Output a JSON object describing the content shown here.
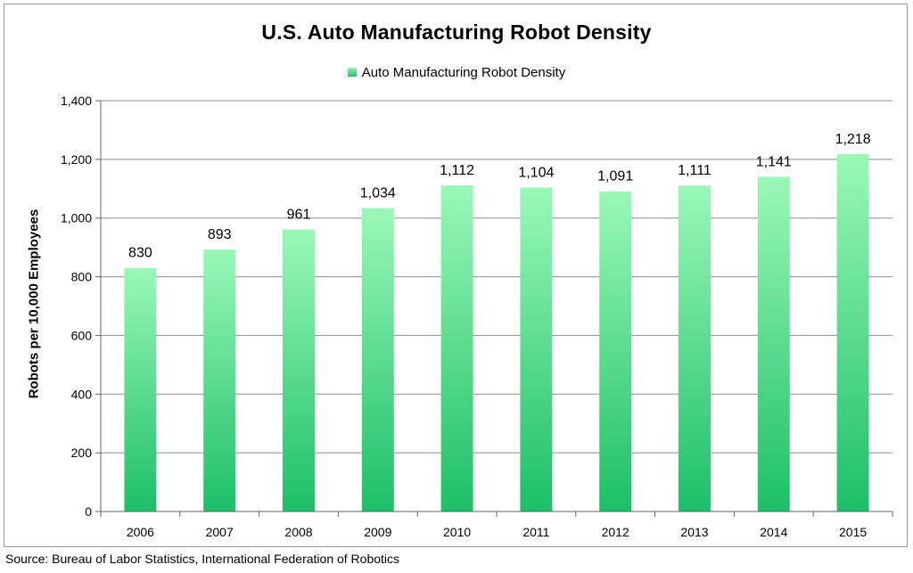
{
  "chart_data": {
    "type": "bar",
    "title": "U.S. Auto Manufacturing Robot Density",
    "ylabel": "Robots per 10,000 Employees",
    "xlabel": "",
    "categories": [
      "2006",
      "2007",
      "2008",
      "2009",
      "2010",
      "2011",
      "2012",
      "2013",
      "2014",
      "2015"
    ],
    "series": [
      {
        "name": "Auto Manufacturing Robot Density",
        "values": [
          830,
          893,
          961,
          1034,
          1112,
          1104,
          1091,
          1111,
          1141,
          1218
        ],
        "value_labels": [
          "830",
          "893",
          "961",
          "1,034",
          "1,112",
          "1,104",
          "1,091",
          "1,111",
          "1,141",
          "1,218"
        ]
      }
    ],
    "ylim": [
      0,
      1400
    ],
    "yticks": [
      0,
      200,
      400,
      600,
      800,
      1000,
      1200,
      1400
    ],
    "ytick_labels": [
      "0",
      "200",
      "400",
      "600",
      "800",
      "1,000",
      "1,200",
      "1,400"
    ],
    "grid": true,
    "legend_position": "top-center",
    "colors": {
      "bar_top": "#9af8b8",
      "bar_bottom": "#1dbf68",
      "grid": "#8c8c8c"
    }
  },
  "source": "Source: Bureau of Labor Statistics, International Federation of Robotics"
}
